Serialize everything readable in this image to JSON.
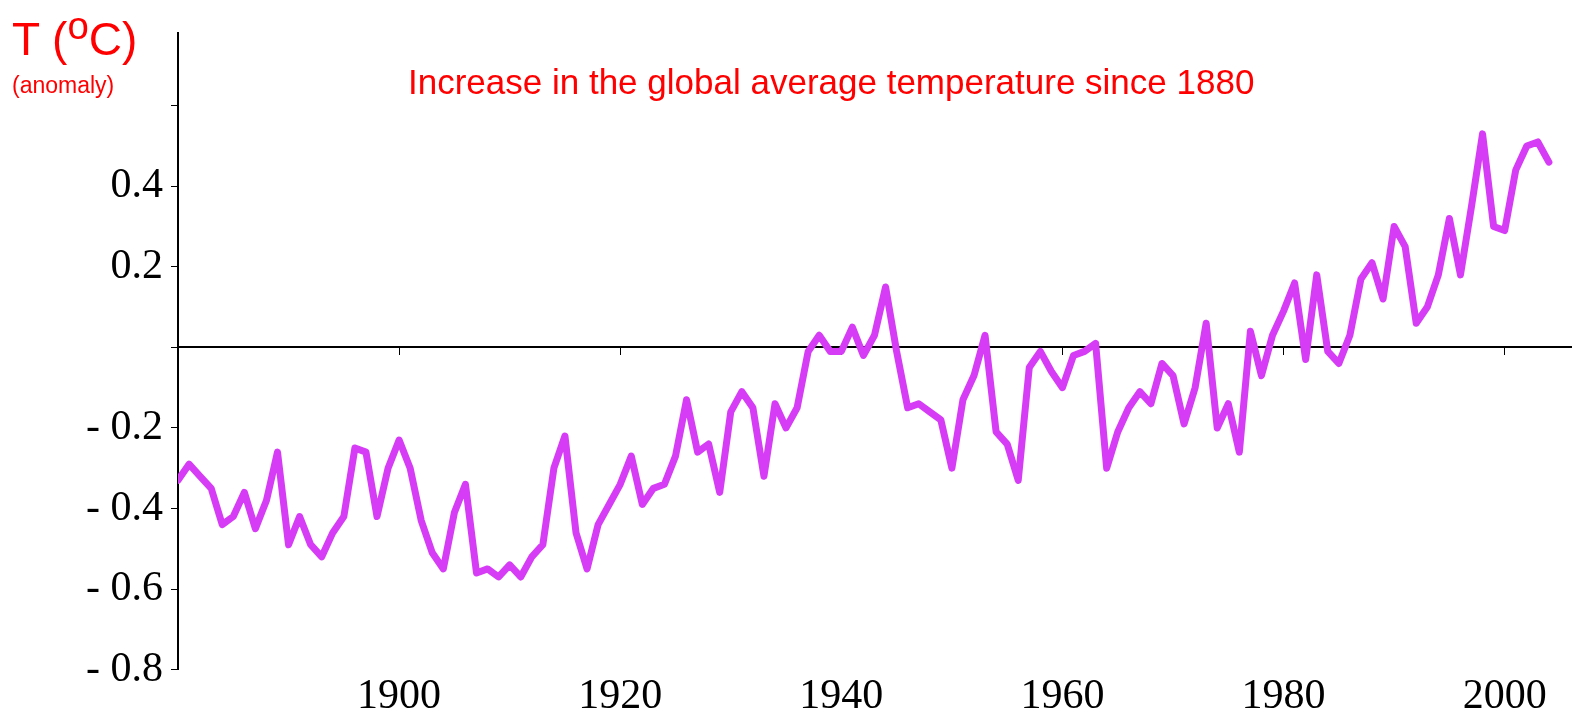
{
  "chart_data": {
    "type": "line",
    "title": "Increase in the global average temperature since 1880",
    "ylabel": "T ($^{o}$C)",
    "annotations": [
      "(anomaly)"
    ],
    "x": [
      1880,
      1881,
      1882,
      1883,
      1884,
      1885,
      1886,
      1887,
      1888,
      1889,
      1890,
      1891,
      1892,
      1893,
      1894,
      1895,
      1896,
      1897,
      1898,
      1899,
      1900,
      1901,
      1902,
      1903,
      1904,
      1905,
      1906,
      1907,
      1908,
      1909,
      1910,
      1911,
      1912,
      1913,
      1914,
      1915,
      1916,
      1917,
      1918,
      1919,
      1920,
      1921,
      1922,
      1923,
      1924,
      1925,
      1926,
      1927,
      1928,
      1929,
      1930,
      1931,
      1932,
      1933,
      1934,
      1935,
      1936,
      1937,
      1938,
      1939,
      1940,
      1941,
      1942,
      1943,
      1944,
      1945,
      1946,
      1947,
      1948,
      1949,
      1950,
      1951,
      1952,
      1953,
      1954,
      1955,
      1956,
      1957,
      1958,
      1959,
      1960,
      1961,
      1962,
      1963,
      1964,
      1965,
      1966,
      1967,
      1968,
      1969,
      1970,
      1971,
      1972,
      1973,
      1974,
      1975,
      1976,
      1977,
      1978,
      1979,
      1980,
      1981,
      1982,
      1983,
      1984,
      1985,
      1986,
      1987,
      1988,
      1989,
      1990,
      1991,
      1992,
      1993,
      1994,
      1995,
      1996,
      1997,
      1998,
      1999,
      2000,
      2001,
      2002,
      2003,
      2004
    ],
    "series": [
      {
        "color": "#d63cf5",
        "values": [
          -0.33,
          -0.29,
          -0.32,
          -0.35,
          -0.44,
          -0.42,
          -0.36,
          -0.45,
          -0.38,
          -0.26,
          -0.49,
          -0.42,
          -0.49,
          -0.52,
          -0.46,
          -0.42,
          -0.25,
          -0.26,
          -0.42,
          -0.3,
          -0.23,
          -0.3,
          -0.43,
          -0.51,
          -0.55,
          -0.41,
          -0.34,
          -0.56,
          -0.55,
          -0.57,
          -0.54,
          -0.57,
          -0.52,
          -0.49,
          -0.3,
          -0.22,
          -0.46,
          -0.55,
          -0.44,
          -0.39,
          -0.34,
          -0.27,
          -0.39,
          -0.35,
          -0.34,
          -0.27,
          -0.13,
          -0.26,
          -0.24,
          -0.36,
          -0.16,
          -0.11,
          -0.15,
          -0.32,
          -0.14,
          -0.2,
          -0.15,
          -0.01,
          0.03,
          -0.01,
          -0.01,
          0.05,
          -0.02,
          0.03,
          0.15,
          -0.01,
          -0.15,
          -0.14,
          -0.16,
          -0.18,
          -0.3,
          -0.13,
          -0.07,
          0.03,
          -0.21,
          -0.24,
          -0.33,
          -0.05,
          -0.01,
          -0.06,
          -0.1,
          -0.02,
          -0.01,
          0.01,
          -0.3,
          -0.21,
          -0.15,
          -0.11,
          -0.14,
          -0.04,
          -0.07,
          -0.19,
          -0.1,
          0.06,
          -0.2,
          -0.14,
          -0.26,
          0.04,
          -0.07,
          0.03,
          0.09,
          0.16,
          -0.03,
          0.18,
          -0.01,
          -0.04,
          0.03,
          0.17,
          0.21,
          0.12,
          0.3,
          0.25,
          0.06,
          0.1,
          0.18,
          0.32,
          0.18,
          0.35,
          0.53,
          0.3,
          0.29,
          0.44,
          0.5,
          0.51,
          0.46
        ]
      }
    ],
    "xlim": [
      1880,
      2006
    ],
    "ylim": [
      -0.8,
      0.78
    ],
    "xticks": [
      1900,
      1920,
      1940,
      1960,
      1980,
      2000
    ],
    "yticks": [
      {
        "value": -0.8,
        "label": "- 0.8"
      },
      {
        "value": -0.6,
        "label": "- 0.6"
      },
      {
        "value": -0.4,
        "label": "- 0.4"
      },
      {
        "value": -0.2,
        "label": "- 0.2"
      },
      {
        "value": 0,
        "label": null
      },
      0.2,
      0.4,
      {
        "value": 0.6,
        "label": null
      }
    ]
  }
}
